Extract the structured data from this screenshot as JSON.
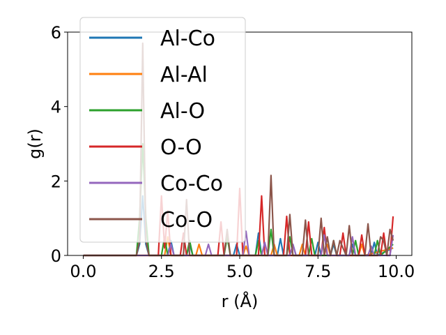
{
  "chart_data": {
    "type": "line",
    "xlabel": "r (Å)",
    "ylabel": "g(r)",
    "xlim": [
      -0.5,
      10.5
    ],
    "ylim": [
      0,
      6
    ],
    "xticks": [
      0.0,
      2.5,
      5.0,
      7.5,
      10.0
    ],
    "xtick_labels": [
      "0.0",
      "2.5",
      "5.0",
      "7.5",
      "10.0"
    ],
    "yticks": [
      0,
      2,
      4,
      6
    ],
    "ytick_labels": [
      "0",
      "2",
      "4",
      "6"
    ],
    "grid": false,
    "legend_position": "top-left",
    "series": [
      {
        "name": "Al-Co",
        "color": "#1f77b4",
        "x": [
          0,
          1.7,
          1.8,
          1.9,
          2.0,
          2.1,
          2.7,
          2.8,
          2.9,
          3.3,
          3.4,
          3.5,
          4.8,
          4.9,
          5.0,
          5.5,
          5.6,
          5.7,
          6.2,
          6.3,
          6.4,
          6.6,
          6.7,
          6.8,
          7.4,
          7.5,
          7.6,
          7.9,
          8.0,
          8.1,
          8.5,
          8.6,
          8.7,
          9.2,
          9.3,
          9.4,
          9.9
        ],
        "y": [
          0,
          0,
          0.3,
          1.6,
          0.3,
          0,
          0,
          0.4,
          0,
          0,
          0.3,
          0,
          0,
          0.3,
          0,
          0,
          0.6,
          0,
          0,
          0.45,
          0,
          0,
          0.3,
          0,
          0,
          0.35,
          0,
          0,
          0.3,
          0,
          0,
          0.3,
          0,
          0,
          0.35,
          0,
          0.2
        ]
      },
      {
        "name": "Al-Al",
        "color": "#ff7f0e",
        "x": [
          0,
          2.6,
          2.7,
          2.8,
          3.6,
          3.7,
          3.8,
          5.1,
          5.2,
          5.3,
          6.0,
          6.1,
          6.2,
          6.9,
          7.0,
          7.1,
          7.7,
          7.8,
          7.9,
          8.8,
          8.9,
          9.0,
          9.9
        ],
        "y": [
          0,
          0,
          0.5,
          0,
          0,
          0.3,
          0,
          0,
          0.25,
          0,
          0,
          0.3,
          0,
          0,
          0.3,
          0,
          0,
          0.3,
          0,
          0,
          0.3,
          0,
          0.2
        ]
      },
      {
        "name": "Al-O",
        "color": "#2ca02c",
        "x": [
          0,
          1.7,
          1.8,
          1.9,
          2.0,
          2.1,
          2.5,
          2.6,
          2.7,
          3.3,
          3.4,
          3.5,
          4.5,
          4.6,
          4.7,
          5.5,
          5.6,
          5.7,
          5.9,
          6.0,
          6.1,
          6.5,
          6.6,
          6.7,
          7.2,
          7.3,
          7.4,
          7.9,
          8.0,
          8.1,
          8.6,
          8.7,
          8.8,
          9.3,
          9.4,
          9.5,
          9.9
        ],
        "y": [
          0,
          0,
          1.0,
          3.0,
          1.0,
          0,
          0,
          0.5,
          0,
          0,
          0.4,
          0,
          0,
          0.5,
          0,
          0,
          0.4,
          0,
          0,
          0.7,
          0,
          0,
          0.5,
          0,
          0,
          0.45,
          0,
          0,
          0.4,
          0,
          0,
          0.4,
          0,
          0,
          0.4,
          0,
          0.3
        ]
      },
      {
        "name": "O-O",
        "color": "#d62728",
        "x": [
          0,
          2.4,
          2.5,
          2.6,
          2.7,
          2.8,
          3.1,
          3.2,
          3.3,
          4.3,
          4.4,
          4.5,
          4.9,
          5.0,
          5.1,
          5.6,
          5.7,
          5.8,
          6.4,
          6.5,
          6.6,
          7.1,
          7.2,
          7.3,
          7.6,
          7.7,
          7.8,
          8.2,
          8.3,
          8.4,
          8.8,
          8.9,
          9.0,
          9.5,
          9.6,
          9.7,
          9.8,
          9.9
        ],
        "y": [
          0,
          0,
          1.6,
          0.2,
          1.2,
          0,
          0,
          0.6,
          0,
          0,
          0.9,
          0,
          0,
          1.8,
          0,
          0,
          1.6,
          0,
          0,
          1.05,
          0,
          0,
          0.9,
          0,
          0,
          0.75,
          0,
          0,
          0.6,
          0,
          0,
          0.55,
          0,
          0,
          0.6,
          0,
          0,
          1.05
        ]
      },
      {
        "name": "Co-Co",
        "color": "#9467bd",
        "x": [
          0,
          2.7,
          2.8,
          2.9,
          3.9,
          4.0,
          4.1,
          5.1,
          5.2,
          5.3,
          5.7,
          5.8,
          5.9,
          6.6,
          6.7,
          6.8,
          7.6,
          7.7,
          7.8,
          8.5,
          8.6,
          8.7,
          9.1,
          9.2,
          9.3,
          9.8,
          9.9
        ],
        "y": [
          0,
          0,
          0.3,
          0,
          0,
          0.3,
          0,
          0,
          0.65,
          0,
          0,
          0.35,
          0,
          0,
          0.3,
          0,
          0,
          0.55,
          0,
          0,
          0.5,
          0,
          0,
          0.25,
          0,
          0,
          0.55
        ]
      },
      {
        "name": "Co-O",
        "color": "#8c564b",
        "x": [
          0,
          1.7,
          1.8,
          1.9,
          2.0,
          2.1,
          3.2,
          3.3,
          3.4,
          4.5,
          4.6,
          4.7,
          5.9,
          6.0,
          6.1,
          6.5,
          6.6,
          6.7,
          7.0,
          7.1,
          7.2,
          7.5,
          7.6,
          7.7,
          7.8,
          7.9,
          8.0,
          8.1,
          8.2,
          8.4,
          8.5,
          8.6,
          9.0,
          9.1,
          9.2,
          9.4,
          9.5,
          9.6,
          9.7,
          9.8,
          9.9
        ],
        "y": [
          0,
          0,
          0.4,
          5.7,
          0.4,
          0,
          0,
          1.5,
          0,
          0,
          0.7,
          0,
          0,
          2.15,
          0,
          0,
          1.1,
          0,
          0,
          0.95,
          0,
          0,
          1.0,
          0,
          0.5,
          0,
          0.4,
          0,
          0.4,
          0,
          0.8,
          0,
          0,
          0.85,
          0,
          0,
          0.5,
          0.4,
          0,
          0.7,
          0.4
        ]
      }
    ]
  }
}
